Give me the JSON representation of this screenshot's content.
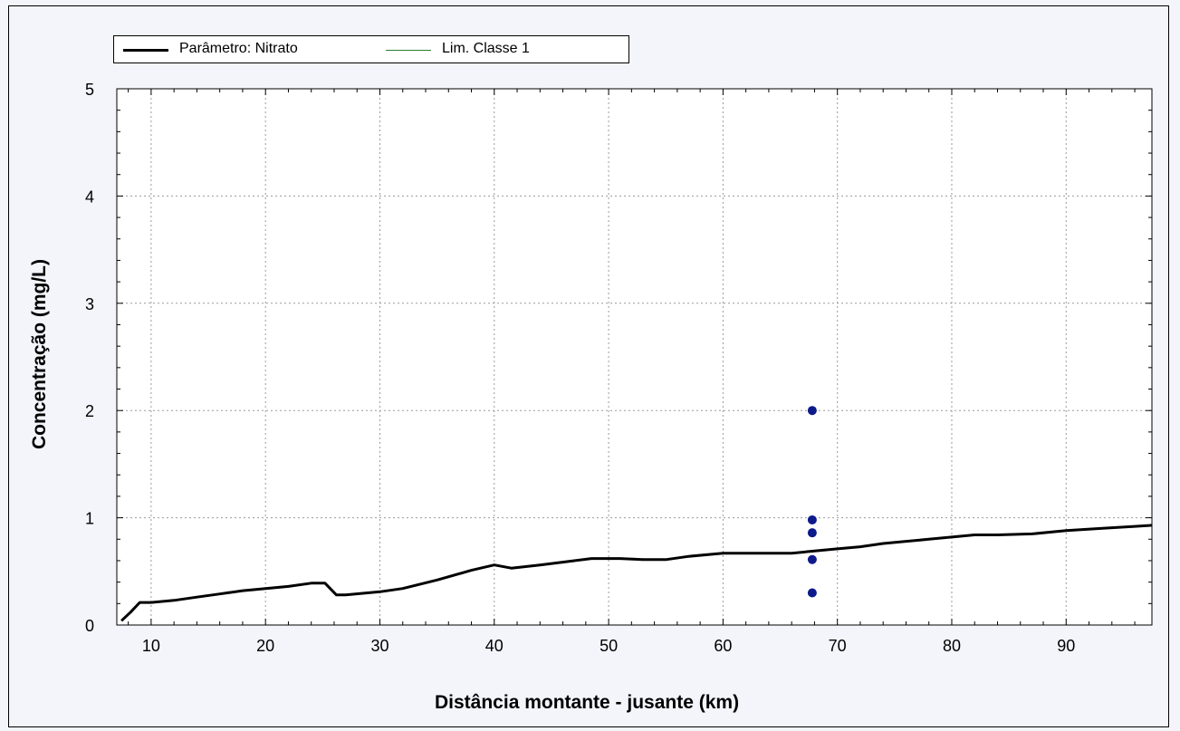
{
  "legend": {
    "items": [
      {
        "label": "Parâmetro: Nitrato",
        "color": "#000000"
      },
      {
        "label": "Lim. Classe 1",
        "color": "#2e7d32"
      }
    ]
  },
  "colors": {
    "background": "#f3f5fb",
    "plot_area": "#ffffff",
    "points": "#0d1a8c",
    "grid": "#9a9a9a"
  },
  "chart_data": {
    "type": "line",
    "xlabel": "Distância montante - jusante (km)",
    "ylabel": "Concentração (mg/L)",
    "xlim": [
      7,
      97.5
    ],
    "ylim": [
      0,
      5
    ],
    "xticks": [
      10,
      20,
      30,
      40,
      50,
      60,
      70,
      80,
      90
    ],
    "yticks": [
      0,
      1,
      2,
      3,
      4,
      5
    ],
    "grid": true,
    "legend_position": "top-left",
    "series": [
      {
        "name": "Parâmetro: Nitrato",
        "kind": "line",
        "color": "#000000",
        "x": [
          7.4,
          8.2,
          9.0,
          10.0,
          12.0,
          14.0,
          16.0,
          18.0,
          20.0,
          22.0,
          24.0,
          25.2,
          26.2,
          27.0,
          30.0,
          32.0,
          35.0,
          38.0,
          40.0,
          41.5,
          44.0,
          47.0,
          48.5,
          51.0,
          53.0,
          55.0,
          57.0,
          60.0,
          63.0,
          66.0,
          68.0,
          70.0,
          72.0,
          74.0,
          76.0,
          78.0,
          80.0,
          82.0,
          84.0,
          87.0,
          90.0,
          93.0,
          96.0,
          97.5
        ],
        "y": [
          0.04,
          0.12,
          0.21,
          0.21,
          0.23,
          0.26,
          0.29,
          0.32,
          0.34,
          0.36,
          0.39,
          0.39,
          0.28,
          0.28,
          0.31,
          0.34,
          0.42,
          0.51,
          0.56,
          0.53,
          0.56,
          0.6,
          0.62,
          0.62,
          0.61,
          0.61,
          0.64,
          0.67,
          0.67,
          0.67,
          0.69,
          0.71,
          0.73,
          0.76,
          0.78,
          0.8,
          0.82,
          0.84,
          0.84,
          0.85,
          0.88,
          0.9,
          0.92,
          0.93
        ]
      },
      {
        "name": "Lim. Classe 1",
        "kind": "line",
        "color": "#2e7d32",
        "x": [],
        "y": []
      },
      {
        "kind": "scatter",
        "color": "#0d1a8c",
        "x": [
          67.8,
          67.8,
          67.8,
          67.8,
          67.8
        ],
        "y": [
          2.0,
          0.98,
          0.86,
          0.61,
          0.3
        ]
      }
    ]
  }
}
